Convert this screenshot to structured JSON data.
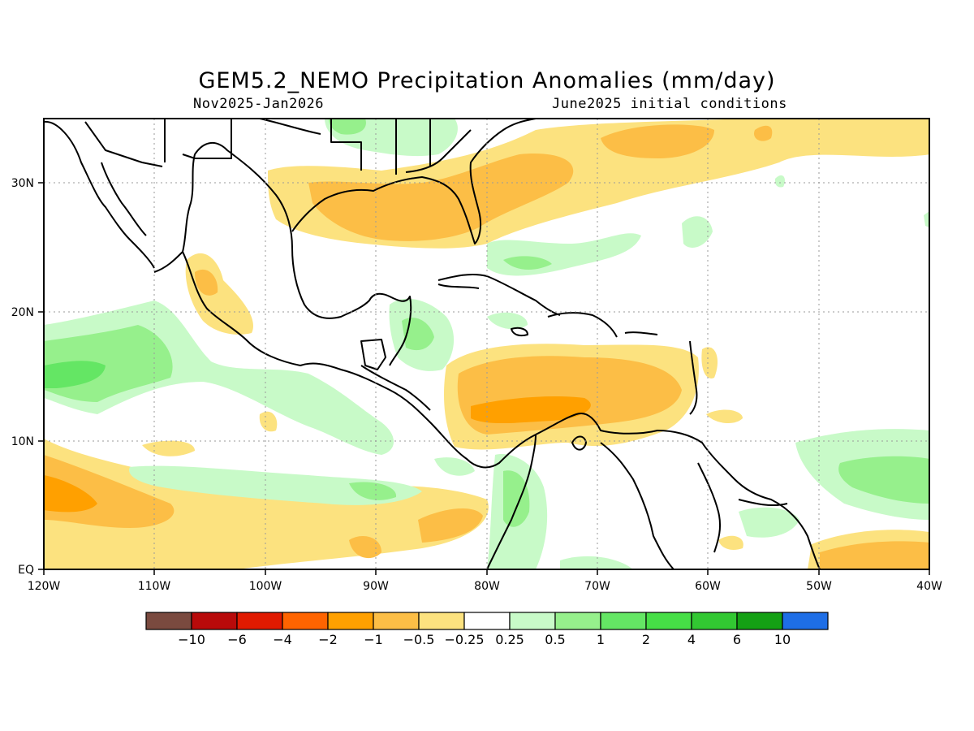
{
  "header": {
    "title": "GEM5.2_NEMO Precipitation Anomalies (mm/day)",
    "period": "Nov2025-Jan2026",
    "init": "June2025 initial conditions"
  },
  "map": {
    "lon_ticks": [
      "120W",
      "110W",
      "100W",
      "90W",
      "80W",
      "70W",
      "60W",
      "50W",
      "40W"
    ],
    "lat_ticks": [
      "EQ",
      "10N",
      "20N",
      "30N"
    ],
    "lon_range": [
      -120,
      -40
    ],
    "lat_range": [
      0,
      35
    ]
  },
  "colorbar": {
    "colors": [
      "#7a4a3f",
      "#b80a0a",
      "#e01a00",
      "#ff6400",
      "#ffa000",
      "#fcbe46",
      "#fce27f",
      "#ffffff",
      "#c8fac8",
      "#96f08c",
      "#64e664",
      "#46de46",
      "#32c832",
      "#14a014",
      "#1e6ee6"
    ],
    "labels": [
      "-10",
      "-6",
      "-4",
      "-2",
      "-1",
      "-0.5",
      "-0.25",
      "0.25",
      "0.5",
      "1",
      "2",
      "4",
      "6",
      "10"
    ]
  }
}
